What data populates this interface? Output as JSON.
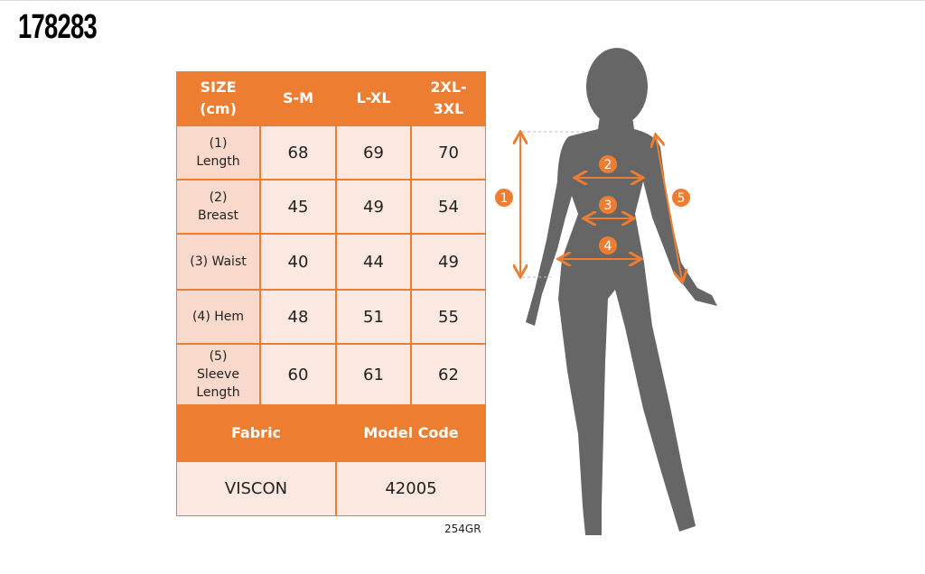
{
  "header": {
    "code": "178283"
  },
  "table": {
    "columns": [
      "SIZE (cm)",
      "S-M",
      "L-XL",
      "2XL-3XL"
    ],
    "rows": [
      [
        "(1) Length",
        68,
        69,
        70
      ],
      [
        "(2) Breast",
        45,
        49,
        54
      ],
      [
        "(3) Waist",
        40,
        44,
        49
      ],
      [
        "(4) Hem",
        48,
        51,
        55
      ],
      [
        "(5) Sleeve Length",
        60,
        61,
        62
      ]
    ]
  },
  "details": {
    "columns": [
      "Fabric",
      "Model Code"
    ],
    "values": [
      "VISCON",
      "42005"
    ]
  },
  "footer": {
    "weight": "254GR"
  },
  "figure": {
    "markers": [
      "1",
      "2",
      "3",
      "4",
      "5"
    ]
  }
}
